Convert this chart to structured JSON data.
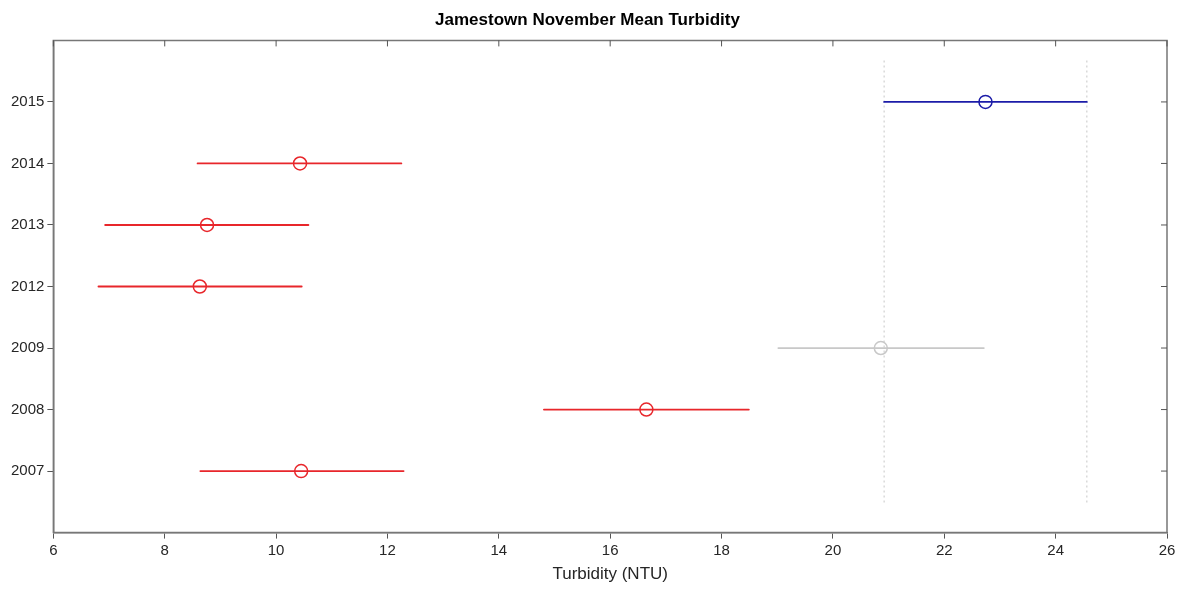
{
  "chart_data": {
    "type": "scatter",
    "orientation": "horizontal",
    "title": "Jamestown November Mean Turbidity",
    "xlabel": "Turbidity (NTU)",
    "categories": [
      "2015",
      "2014",
      "2013",
      "2012",
      "2009",
      "2008",
      "2007"
    ],
    "values": [
      22.74,
      10.43,
      8.76,
      8.63,
      20.86,
      16.65,
      10.45
    ],
    "errors": [
      [
        20.92,
        24.56
      ],
      [
        8.59,
        12.25
      ],
      [
        6.93,
        10.58
      ],
      [
        6.81,
        10.46
      ],
      [
        19.02,
        22.71
      ],
      [
        14.81,
        18.49
      ],
      [
        8.64,
        12.29
      ]
    ],
    "colors": [
      "#1c1ca8",
      "#e8262b",
      "#e8262b",
      "#e8262b",
      "#c8c8c8",
      "#e8262b",
      "#e8262b"
    ],
    "marker": "circle",
    "xlim": [
      6,
      26
    ],
    "xticks": [
      6,
      8,
      10,
      12,
      14,
      16,
      18,
      20,
      22,
      24,
      26
    ],
    "ref_lines": [
      {
        "axis": "x",
        "value": 20.92,
        "color": "#d0d0d0",
        "line_style": "dotted"
      },
      {
        "axis": "x",
        "value": 24.56,
        "color": "#d0d0d0",
        "line_style": "dotted"
      }
    ],
    "grid": false,
    "legend": false
  }
}
